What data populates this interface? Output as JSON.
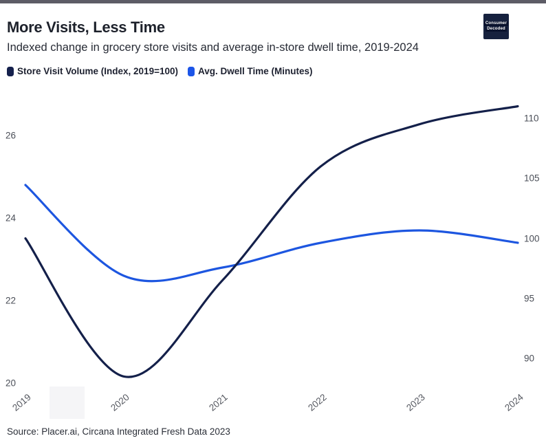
{
  "page": {
    "background": "#ffffff",
    "top_strip_color": "#5d5c66"
  },
  "header": {
    "title": "More Visits, Less Time",
    "subtitle": "Indexed change in grocery store visits and average in-store dwell time, 2019-2024",
    "logo": {
      "line1": "Consumer",
      "line2": "Decoded",
      "bg_color": "#16213e",
      "text_color": "#ffffff"
    }
  },
  "legend": {
    "items": [
      {
        "label": "Store Visit Volume (Index, 2019=100)",
        "color": "#15214d"
      },
      {
        "label": "Avg. Dwell Time (Minutes)",
        "color": "#1c55e8"
      }
    ]
  },
  "chart_data": {
    "type": "line",
    "title": "More Visits, Less Time",
    "subtitle": "Indexed change in grocery store visits and average in-store dwell time, 2019-2024",
    "x": [
      2019,
      2020,
      2021,
      2022,
      2023,
      2024
    ],
    "x_tick_labels": [
      "2019",
      "2020",
      "2021",
      "2022",
      "2023",
      "2024"
    ],
    "series": [
      {
        "name": "Store Visit Volume (Index, 2019=100)",
        "axis": "right",
        "color": "#14204a",
        "values": [
          100,
          88.5,
          96.5,
          106,
          109.5,
          111
        ]
      },
      {
        "name": "Avg. Dwell Time (Minutes)",
        "axis": "left",
        "color": "#1d56e0",
        "values": [
          24.8,
          22.6,
          22.8,
          23.4,
          23.7,
          23.4
        ]
      }
    ],
    "left_axis": {
      "ticks": [
        26,
        24,
        22,
        20
      ],
      "range": [
        19.6,
        26.6
      ]
    },
    "right_axis": {
      "ticks": [
        110,
        105,
        100,
        95,
        90
      ],
      "range": [
        88,
        112
      ]
    },
    "grid": false,
    "legend_position": "top-left"
  },
  "footer": {
    "source": "Source: Placer.ai, Circana Integrated Fresh Data 2023"
  }
}
